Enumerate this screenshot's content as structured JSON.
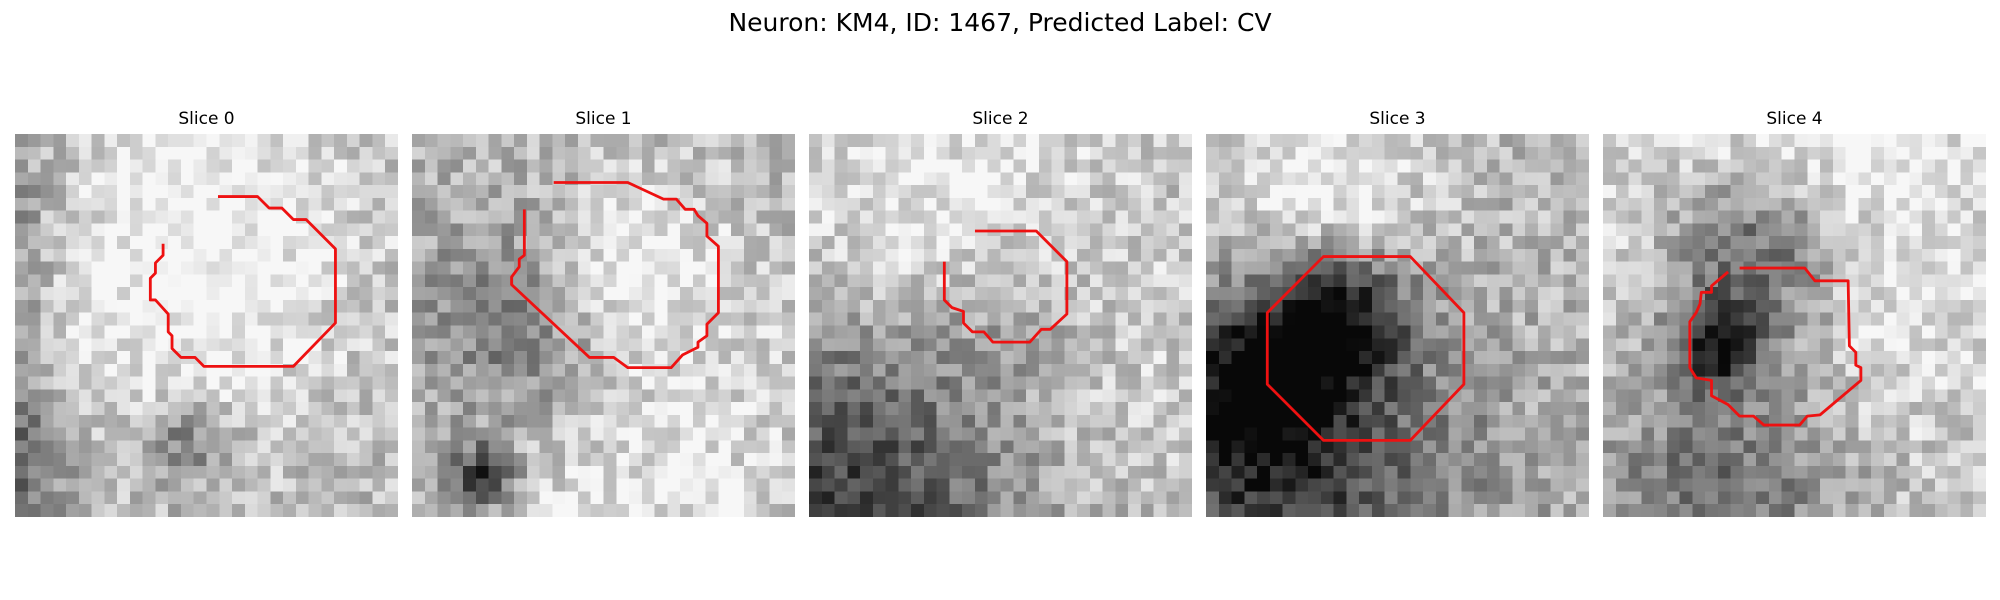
{
  "figure": {
    "title": "Neuron: KM4, ID: 1467, Predicted Label: CV"
  },
  "slices": [
    {
      "label": "Slice 0",
      "contour": "red-contour",
      "grid": 30,
      "seed": 11,
      "blobs": [
        [
          -0.5,
          0.55,
          0.6,
          -0.55
        ],
        [
          -0.25,
          0.2,
          0.65,
          -0.4
        ],
        [
          -0.05,
          0.85,
          0.35,
          -0.35
        ],
        [
          0.4,
          0.3,
          0.85,
          0.3
        ],
        [
          0.45,
          0.8,
          0.2,
          -0.3
        ]
      ]
    },
    {
      "label": "Slice 1",
      "contour": "red-contour",
      "grid": 30,
      "seed": 23,
      "blobs": [
        [
          0.3,
          0.55,
          0.6,
          -0.5
        ],
        [
          0.18,
          0.9,
          0.15,
          -0.6
        ],
        [
          0.55,
          0.35,
          0.35,
          0.25
        ],
        [
          0.42,
          0.7,
          0.85,
          0.35
        ]
      ]
    },
    {
      "label": "Slice 2",
      "contour": "red-contour",
      "grid": 30,
      "seed": 37,
      "blobs": [
        [
          0.2,
          0.85,
          0.9,
          -0.6
        ],
        [
          0.55,
          0.5,
          0.4,
          -0.2
        ],
        [
          0.25,
          0.25,
          0.8,
          0.25
        ],
        [
          0.55,
          0.68,
          0.8,
          0.3
        ]
      ]
    },
    {
      "label": "Slice 3",
      "contour": "red-contour",
      "grid": 30,
      "seed": 53,
      "blobs": [
        [
          0.35,
          0.48,
          0.3,
          -0.55
        ],
        [
          0.15,
          0.67,
          0.4,
          -0.6
        ],
        [
          0.25,
          0.87,
          0.75,
          -0.45
        ],
        [
          0.3,
          0.15,
          0.5,
          0.25
        ],
        [
          0.3,
          0.7,
          0.4,
          0.15
        ]
      ]
    },
    {
      "label": "Slice 4",
      "contour": "red-contour",
      "grid": 30,
      "seed": 71,
      "blobs": [
        [
          0.4,
          0.3,
          0.45,
          -0.6
        ],
        [
          0.3,
          0.55,
          0.2,
          -0.55
        ],
        [
          0.32,
          0.85,
          0.65,
          -0.5
        ],
        [
          0.4,
          0.6,
          0.95,
          0.3
        ],
        [
          0.5,
          0.05,
          0.8,
          0.25
        ]
      ]
    }
  ]
}
